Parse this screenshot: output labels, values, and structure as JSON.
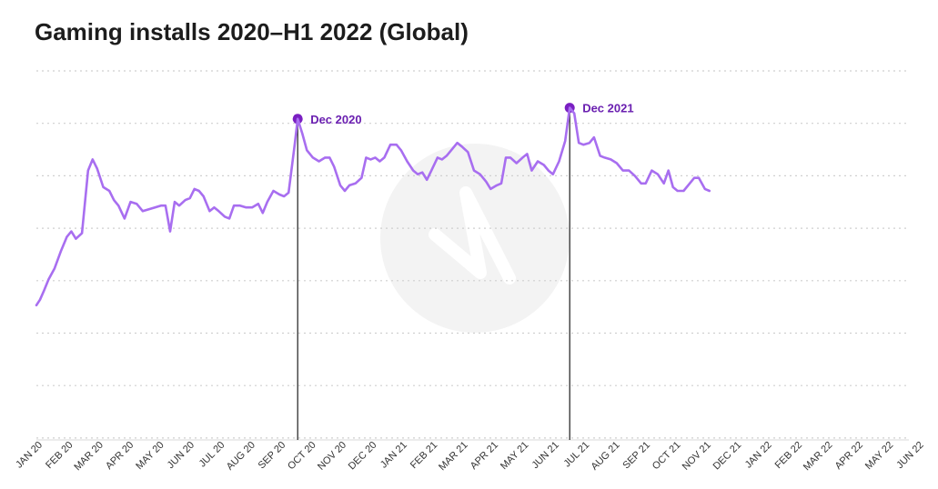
{
  "chart_data": {
    "type": "line",
    "title": "Gaming installs 2020–H1 2022 (Global)",
    "xlabel": "",
    "ylabel": "",
    "grid": "horizontal dotted",
    "y_axis_labels_shown": false,
    "categories": [
      "JAN 20",
      "FEB 20",
      "MAR 20",
      "APR 20",
      "MAY 20",
      "JUN 20",
      "JUL 20",
      "AUG 20",
      "SEP 20",
      "OCT 20",
      "NOV 20",
      "DEC 20",
      "JAN 21",
      "FEB 21",
      "MAR 21",
      "APR 21",
      "MAY 21",
      "JUN 21",
      "JUL 21",
      "AUG 21",
      "SEP 21",
      "OCT 21",
      "NOV 21",
      "DEC 21",
      "JAN 22",
      "FEB 22",
      "MAR 22",
      "APR 22",
      "MAY 22",
      "JUN 22"
    ],
    "series": [
      {
        "color": "#a86ef0",
        "points": [
          [
            0.0,
            36.5
          ],
          [
            0.12,
            38.0
          ],
          [
            0.25,
            40.5
          ],
          [
            0.4,
            43.5
          ],
          [
            0.6,
            46.5
          ],
          [
            0.8,
            51.0
          ],
          [
            1.0,
            55.0
          ],
          [
            1.15,
            56.5
          ],
          [
            1.3,
            54.5
          ],
          [
            1.5,
            56.0
          ],
          [
            1.7,
            73.0
          ],
          [
            1.85,
            76.0
          ],
          [
            2.0,
            73.5
          ],
          [
            2.2,
            68.5
          ],
          [
            2.4,
            67.5
          ],
          [
            2.55,
            65.0
          ],
          [
            2.7,
            63.5
          ],
          [
            2.9,
            60.0
          ],
          [
            3.1,
            64.5
          ],
          [
            3.3,
            64.0
          ],
          [
            3.5,
            62.0
          ],
          [
            3.7,
            62.5
          ],
          [
            3.9,
            63.0
          ],
          [
            4.1,
            63.5
          ],
          [
            4.25,
            63.5
          ],
          [
            4.4,
            56.5
          ],
          [
            4.55,
            64.5
          ],
          [
            4.7,
            63.5
          ],
          [
            4.9,
            65.0
          ],
          [
            5.05,
            65.5
          ],
          [
            5.2,
            68.0
          ],
          [
            5.35,
            67.5
          ],
          [
            5.5,
            66.0
          ],
          [
            5.7,
            62.0
          ],
          [
            5.85,
            63.0
          ],
          [
            6.0,
            62.0
          ],
          [
            6.2,
            60.5
          ],
          [
            6.35,
            60.0
          ],
          [
            6.5,
            63.5
          ],
          [
            6.7,
            63.5
          ],
          [
            6.9,
            63.0
          ],
          [
            7.1,
            63.0
          ],
          [
            7.3,
            64.0
          ],
          [
            7.45,
            61.5
          ],
          [
            7.6,
            64.5
          ],
          [
            7.8,
            67.5
          ],
          [
            8.0,
            66.5
          ],
          [
            8.15,
            66.0
          ],
          [
            8.3,
            67.0
          ],
          [
            8.5,
            80.0
          ],
          [
            8.6,
            87.0
          ],
          [
            8.75,
            83.0
          ],
          [
            8.9,
            78.5
          ],
          [
            9.1,
            76.5
          ],
          [
            9.3,
            75.5
          ],
          [
            9.5,
            76.5
          ],
          [
            9.65,
            76.5
          ],
          [
            9.8,
            74.0
          ],
          [
            10.0,
            69.0
          ],
          [
            10.15,
            67.5
          ],
          [
            10.3,
            69.0
          ],
          [
            10.5,
            69.5
          ],
          [
            10.7,
            71.0
          ],
          [
            10.85,
            76.5
          ],
          [
            11.0,
            76.0
          ],
          [
            11.15,
            76.5
          ],
          [
            11.3,
            75.5
          ],
          [
            11.45,
            76.5
          ],
          [
            11.65,
            80.0
          ],
          [
            11.85,
            80.0
          ],
          [
            12.0,
            78.5
          ],
          [
            12.2,
            75.5
          ],
          [
            12.4,
            73.0
          ],
          [
            12.55,
            72.0
          ],
          [
            12.7,
            72.5
          ],
          [
            12.85,
            70.5
          ],
          [
            13.0,
            73.0
          ],
          [
            13.2,
            76.5
          ],
          [
            13.35,
            76.0
          ],
          [
            13.5,
            77.0
          ],
          [
            13.7,
            79.0
          ],
          [
            13.85,
            80.5
          ],
          [
            14.0,
            79.5
          ],
          [
            14.2,
            78.0
          ],
          [
            14.4,
            73.0
          ],
          [
            14.6,
            72.0
          ],
          [
            14.8,
            70.0
          ],
          [
            14.95,
            68.0
          ],
          [
            15.15,
            69.0
          ],
          [
            15.3,
            69.5
          ],
          [
            15.45,
            76.5
          ],
          [
            15.6,
            76.5
          ],
          [
            15.8,
            75.0
          ],
          [
            16.0,
            76.5
          ],
          [
            16.15,
            77.5
          ],
          [
            16.3,
            73.0
          ],
          [
            16.5,
            75.5
          ],
          [
            16.7,
            74.5
          ],
          [
            16.85,
            73.0
          ],
          [
            17.0,
            72.0
          ],
          [
            17.2,
            75.5
          ],
          [
            17.4,
            81.0
          ],
          [
            17.55,
            90.0
          ],
          [
            17.7,
            88.5
          ],
          [
            17.85,
            80.5
          ],
          [
            18.0,
            80.0
          ],
          [
            18.2,
            80.5
          ],
          [
            18.35,
            82.0
          ],
          [
            18.55,
            77.0
          ],
          [
            18.7,
            76.5
          ],
          [
            18.9,
            76.0
          ],
          [
            19.1,
            75.0
          ],
          [
            19.3,
            73.0
          ],
          [
            19.5,
            73.0
          ],
          [
            19.7,
            71.5
          ],
          [
            19.9,
            69.5
          ],
          [
            20.05,
            69.5
          ],
          [
            20.25,
            73.0
          ],
          [
            20.45,
            72.0
          ],
          [
            20.65,
            69.5
          ],
          [
            20.8,
            73.0
          ],
          [
            20.95,
            68.5
          ],
          [
            21.1,
            67.5
          ],
          [
            21.3,
            67.5
          ],
          [
            21.5,
            69.5
          ],
          [
            21.65,
            71.0
          ],
          [
            21.8,
            71.0
          ],
          [
            22.0,
            68.0
          ],
          [
            22.15,
            67.5
          ]
        ]
      }
    ],
    "annotations": [
      {
        "x": 8.6,
        "y": 87.0,
        "label": "Dec 2020"
      },
      {
        "x": 17.55,
        "y": 90.0,
        "label": "Dec 2021"
      }
    ]
  }
}
